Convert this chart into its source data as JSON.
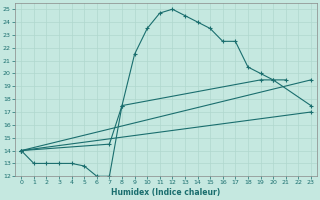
{
  "xlabel": "Humidex (Indice chaleur)",
  "xlim": [
    -0.5,
    23.5
  ],
  "ylim": [
    12,
    25.5
  ],
  "xticks": [
    0,
    1,
    2,
    3,
    4,
    5,
    6,
    7,
    8,
    9,
    10,
    11,
    12,
    13,
    14,
    15,
    16,
    17,
    18,
    19,
    20,
    21,
    22,
    23
  ],
  "yticks": [
    12,
    13,
    14,
    15,
    16,
    17,
    18,
    19,
    20,
    21,
    22,
    23,
    24,
    25
  ],
  "bg_color": "#c5e8e0",
  "line_color": "#1a6e6e",
  "grid_color": "#b0d8ce",
  "curve1_x": [
    0,
    1,
    2,
    3,
    4,
    5,
    6,
    7,
    8,
    9,
    10,
    11,
    12,
    13,
    14,
    15,
    16,
    17,
    18,
    19,
    20,
    21
  ],
  "curve1_y": [
    14,
    13,
    13,
    13,
    13,
    12.8,
    12,
    12,
    17.5,
    21.5,
    23.5,
    24.7,
    25,
    24.5,
    24,
    23.5,
    22.5,
    22.5,
    20.5,
    20,
    19.5,
    19.5
  ],
  "curve2_x": [
    0,
    7,
    8,
    19,
    20,
    23
  ],
  "curve2_y": [
    14,
    14.5,
    17.5,
    19.5,
    19.5,
    17.5
  ],
  "curve3_x": [
    0,
    23
  ],
  "curve3_y": [
    14,
    19.5
  ],
  "curve4_x": [
    0,
    23
  ],
  "curve4_y": [
    14,
    17.0
  ],
  "marker_size": 2,
  "linewidth": 0.8
}
